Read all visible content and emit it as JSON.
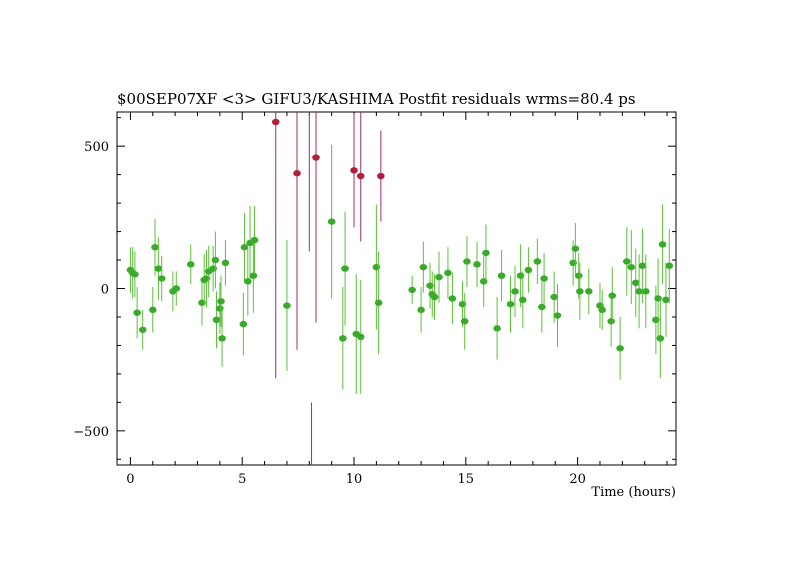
{
  "chart_data": {
    "type": "scatter",
    "title": "$00SEP07XF <3> GIFU3/KASHIMA  Postfit residuals wrms=80.4  ps",
    "xlabel": "Time (hours)",
    "ylabel": "",
    "xlim": [
      -0.6,
      24.4
    ],
    "ylim": [
      -620,
      620
    ],
    "x_ticks": [
      0,
      5,
      10,
      15,
      20
    ],
    "y_ticks": [
      -500,
      0,
      500
    ],
    "grid": false,
    "colors": {
      "good": "#3aaa2a",
      "good_bar": "#5cbf3a",
      "outlier": "#b0203a",
      "outlier_bar": "#a0306a"
    },
    "series": [
      {
        "kind": "good",
        "points": [
          [
            0.0,
            65,
            80
          ],
          [
            0.1,
            55,
            90
          ],
          [
            0.2,
            50,
            80
          ],
          [
            0.3,
            -85,
            90
          ],
          [
            0.55,
            -145,
            70
          ],
          [
            1.0,
            -75,
            80
          ],
          [
            1.1,
            145,
            100
          ],
          [
            1.25,
            70,
            110
          ],
          [
            1.4,
            35,
            80
          ],
          [
            1.9,
            -10,
            70
          ],
          [
            2.05,
            0,
            60
          ],
          [
            2.7,
            85,
            70
          ],
          [
            3.2,
            -50,
            80
          ],
          [
            3.3,
            30,
            90
          ],
          [
            3.4,
            35,
            100
          ],
          [
            3.5,
            60,
            90
          ],
          [
            3.7,
            70,
            80
          ],
          [
            3.8,
            100,
            100
          ],
          [
            3.85,
            -110,
            100
          ],
          [
            4.0,
            -70,
            90
          ],
          [
            4.05,
            -45,
            90
          ],
          [
            4.1,
            -175,
            100
          ],
          [
            4.25,
            90,
            80
          ],
          [
            5.05,
            -125,
            110
          ],
          [
            5.1,
            145,
            120
          ],
          [
            5.25,
            25,
            120
          ],
          [
            5.35,
            160,
            130
          ],
          [
            5.5,
            45,
            130
          ],
          [
            5.55,
            170,
            120
          ],
          [
            7.0,
            -60,
            230
          ],
          [
            9.0,
            235,
            270
          ],
          [
            9.5,
            -175,
            180
          ],
          [
            9.6,
            70,
            200
          ],
          [
            10.1,
            -160,
            210
          ],
          [
            10.3,
            -170,
            200
          ],
          [
            11.0,
            75,
            220
          ],
          [
            11.1,
            -50,
            180
          ],
          [
            12.6,
            -5,
            50
          ],
          [
            13.0,
            -75,
            80
          ],
          [
            13.1,
            75,
            90
          ],
          [
            13.4,
            10,
            80
          ],
          [
            13.5,
            -20,
            80
          ],
          [
            13.6,
            -30,
            80
          ],
          [
            13.8,
            40,
            90
          ],
          [
            14.2,
            55,
            90
          ],
          [
            14.4,
            -35,
            90
          ],
          [
            14.85,
            -55,
            80
          ],
          [
            14.95,
            -115,
            100
          ],
          [
            15.05,
            95,
            90
          ],
          [
            15.5,
            85,
            80
          ],
          [
            15.8,
            25,
            90
          ],
          [
            15.9,
            125,
            100
          ],
          [
            16.4,
            -140,
            110
          ],
          [
            16.6,
            45,
            90
          ],
          [
            17.0,
            -55,
            100
          ],
          [
            17.2,
            -10,
            90
          ],
          [
            17.45,
            45,
            110
          ],
          [
            17.55,
            -40,
            100
          ],
          [
            17.8,
            65,
            80
          ],
          [
            18.2,
            95,
            80
          ],
          [
            18.4,
            -65,
            90
          ],
          [
            18.5,
            35,
            90
          ],
          [
            18.95,
            -30,
            90
          ],
          [
            19.1,
            -95,
            110
          ],
          [
            19.8,
            90,
            80
          ],
          [
            19.9,
            140,
            90
          ],
          [
            20.05,
            45,
            80
          ],
          [
            20.1,
            -10,
            100
          ],
          [
            20.5,
            -10,
            80
          ],
          [
            21.0,
            -60,
            80
          ],
          [
            21.1,
            -75,
            70
          ],
          [
            21.5,
            -115,
            90
          ],
          [
            21.55,
            -25,
            100
          ],
          [
            21.9,
            -210,
            110
          ],
          [
            22.2,
            95,
            120
          ],
          [
            22.4,
            75,
            130
          ],
          [
            22.6,
            20,
            120
          ],
          [
            22.75,
            -10,
            130
          ],
          [
            22.9,
            80,
            130
          ],
          [
            23.05,
            -10,
            130
          ],
          [
            23.5,
            -110,
            120
          ],
          [
            23.6,
            -35,
            140
          ],
          [
            23.7,
            -175,
            140
          ],
          [
            23.8,
            155,
            140
          ],
          [
            23.95,
            -40,
            130
          ],
          [
            24.1,
            80,
            130
          ]
        ]
      },
      {
        "kind": "outlier",
        "points": [
          [
            6.5,
            585,
            900
          ],
          [
            7.45,
            405,
            620
          ],
          [
            8.3,
            460,
            580
          ],
          [
            10.0,
            415,
            200
          ],
          [
            10.3,
            395,
            230
          ],
          [
            11.2,
            395,
            160
          ]
        ]
      },
      {
        "kind": "outlier_bar_only",
        "points": [
          [
            8.0,
            400,
            270
          ],
          [
            8.1,
            -750,
            350
          ]
        ]
      }
    ]
  }
}
